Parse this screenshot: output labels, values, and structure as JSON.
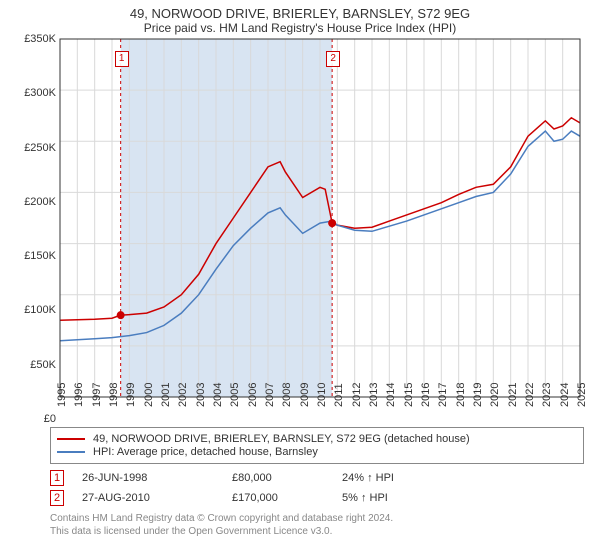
{
  "title": "49, NORWOOD DRIVE, BRIERLEY, BARNSLEY, S72 9EG",
  "subtitle": "Price paid vs. HM Land Registry's House Price Index (HPI)",
  "chart": {
    "type": "line",
    "background_color": "#ffffff",
    "grid_color": "#d9d9d9",
    "shaded_band_color": "#d8e4f2",
    "x_years": [
      1995,
      1996,
      1997,
      1998,
      1999,
      2000,
      2001,
      2002,
      2003,
      2004,
      2005,
      2006,
      2007,
      2008,
      2009,
      2010,
      2011,
      2012,
      2013,
      2014,
      2015,
      2016,
      2017,
      2018,
      2019,
      2020,
      2021,
      2022,
      2023,
      2024,
      2025
    ],
    "x_ticks_rotation": -90,
    "x_tick_fontsize": 11,
    "ylim": [
      0,
      350000
    ],
    "ytick_step": 50000,
    "ytick_prefix": "£",
    "ytick_suffix": "K",
    "y_tick_fontsize": 11,
    "shaded_range_years": [
      1998.5,
      2010.7
    ],
    "series": [
      {
        "id": "price_paid",
        "label": "49, NORWOOD DRIVE, BRIERLEY, BARNSLEY, S72 9EG (detached house)",
        "color": "#cc0000",
        "line_width": 1.5,
        "values": [
          [
            1995,
            75000
          ],
          [
            1996,
            75500
          ],
          [
            1997,
            76000
          ],
          [
            1998,
            77000
          ],
          [
            1998.5,
            80000
          ],
          [
            1999,
            80500
          ],
          [
            2000,
            82000
          ],
          [
            2001,
            88000
          ],
          [
            2002,
            100000
          ],
          [
            2003,
            120000
          ],
          [
            2004,
            150000
          ],
          [
            2005,
            175000
          ],
          [
            2006,
            200000
          ],
          [
            2007,
            225000
          ],
          [
            2007.7,
            230000
          ],
          [
            2008,
            220000
          ],
          [
            2009,
            195000
          ],
          [
            2010,
            205000
          ],
          [
            2010.3,
            203000
          ],
          [
            2010.7,
            170000
          ],
          [
            2011,
            168000
          ],
          [
            2012,
            165000
          ],
          [
            2013,
            166000
          ],
          [
            2014,
            172000
          ],
          [
            2015,
            178000
          ],
          [
            2016,
            184000
          ],
          [
            2017,
            190000
          ],
          [
            2018,
            198000
          ],
          [
            2019,
            205000
          ],
          [
            2020,
            208000
          ],
          [
            2021,
            225000
          ],
          [
            2022,
            255000
          ],
          [
            2023,
            270000
          ],
          [
            2023.5,
            262000
          ],
          [
            2024,
            265000
          ],
          [
            2024.5,
            273000
          ],
          [
            2025,
            268000
          ]
        ]
      },
      {
        "id": "hpi",
        "label": "HPI: Average price, detached house, Barnsley",
        "color": "#4a7dbf",
        "line_width": 1.5,
        "values": [
          [
            1995,
            55000
          ],
          [
            1996,
            56000
          ],
          [
            1997,
            57000
          ],
          [
            1998,
            58000
          ],
          [
            1999,
            60000
          ],
          [
            2000,
            63000
          ],
          [
            2001,
            70000
          ],
          [
            2002,
            82000
          ],
          [
            2003,
            100000
          ],
          [
            2004,
            125000
          ],
          [
            2005,
            148000
          ],
          [
            2006,
            165000
          ],
          [
            2007,
            180000
          ],
          [
            2007.7,
            185000
          ],
          [
            2008,
            178000
          ],
          [
            2009,
            160000
          ],
          [
            2010,
            170000
          ],
          [
            2010.7,
            172000
          ],
          [
            2011,
            168000
          ],
          [
            2012,
            163000
          ],
          [
            2013,
            162000
          ],
          [
            2014,
            167000
          ],
          [
            2015,
            172000
          ],
          [
            2016,
            178000
          ],
          [
            2017,
            184000
          ],
          [
            2018,
            190000
          ],
          [
            2019,
            196000
          ],
          [
            2020,
            200000
          ],
          [
            2021,
            218000
          ],
          [
            2022,
            245000
          ],
          [
            2023,
            260000
          ],
          [
            2023.5,
            250000
          ],
          [
            2024,
            252000
          ],
          [
            2024.5,
            260000
          ],
          [
            2025,
            255000
          ]
        ]
      }
    ],
    "sale_markers": [
      {
        "n": "1",
        "year": 1998.5,
        "value": 80000
      },
      {
        "n": "2",
        "year": 2010.7,
        "value": 170000
      }
    ],
    "marker_line_color": "#cc0000",
    "marker_point_radius": 4
  },
  "legend": {
    "border_color": "#888888",
    "fontsize": 11
  },
  "sales": [
    {
      "n": "1",
      "date": "26-JUN-1998",
      "price": "£80,000",
      "delta": "24% ↑ HPI"
    },
    {
      "n": "2",
      "date": "27-AUG-2010",
      "price": "£170,000",
      "delta": "5% ↑ HPI"
    }
  ],
  "footnote_line1": "Contains HM Land Registry data © Crown copyright and database right 2024.",
  "footnote_line2": "This data is licensed under the Open Government Licence v3.0."
}
